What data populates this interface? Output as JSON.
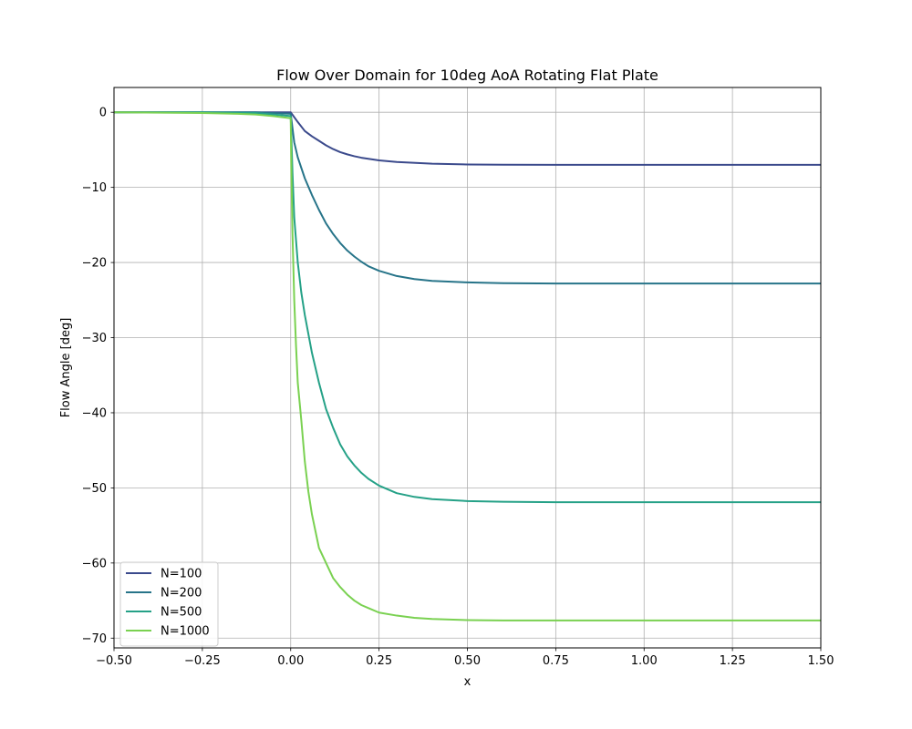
{
  "chart_data": {
    "type": "line",
    "title": "Flow Over Domain for 10deg AoA Rotating Flat Plate",
    "xlabel": "x",
    "ylabel": "Flow Angle [deg]",
    "xlim": [
      -0.5,
      1.5
    ],
    "ylim": [
      -71.3,
      3.3
    ],
    "xticks": [
      -0.5,
      -0.25,
      0.0,
      0.25,
      0.5,
      0.75,
      1.0,
      1.25,
      1.5
    ],
    "xtick_labels": [
      "−0.50",
      "−0.25",
      "0.00",
      "0.25",
      "0.50",
      "0.75",
      "1.00",
      "1.25",
      "1.50"
    ],
    "yticks": [
      0,
      -10,
      -20,
      -30,
      -40,
      -50,
      -60,
      -70
    ],
    "ytick_labels": [
      "0",
      "−10",
      "−20",
      "−30",
      "−40",
      "−50",
      "−60",
      "−70"
    ],
    "grid": true,
    "legend_position": "lower-left",
    "series": [
      {
        "name": "N=100",
        "color": "#3b4a8c",
        "x": [
          -0.5,
          -0.25,
          -0.1,
          -0.05,
          0.0,
          0.02,
          0.04,
          0.06,
          0.08,
          0.1,
          0.12,
          0.14,
          0.16,
          0.18,
          0.2,
          0.25,
          0.3,
          0.4,
          0.5,
          0.6,
          0.75,
          1.0,
          1.25,
          1.5
        ],
        "y": [
          0.0,
          0.0,
          0.0,
          0.0,
          0.0,
          -1.3,
          -2.5,
          -3.2,
          -3.8,
          -4.4,
          -4.9,
          -5.3,
          -5.6,
          -5.85,
          -6.05,
          -6.4,
          -6.62,
          -6.85,
          -6.95,
          -6.98,
          -7.0,
          -7.0,
          -7.0,
          -7.0
        ]
      },
      {
        "name": "N=200",
        "color": "#277489",
        "x": [
          -0.5,
          -0.25,
          -0.1,
          -0.05,
          0.0,
          0.01,
          0.02,
          0.04,
          0.06,
          0.08,
          0.1,
          0.12,
          0.14,
          0.16,
          0.18,
          0.2,
          0.22,
          0.25,
          0.3,
          0.35,
          0.4,
          0.5,
          0.6,
          0.75,
          1.0,
          1.25,
          1.5
        ],
        "y": [
          0.0,
          0.0,
          0.0,
          -0.1,
          -0.2,
          -4.0,
          -6.0,
          -8.8,
          -11.0,
          -13.0,
          -14.8,
          -16.2,
          -17.4,
          -18.4,
          -19.2,
          -19.9,
          -20.5,
          -21.1,
          -21.8,
          -22.2,
          -22.45,
          -22.65,
          -22.75,
          -22.8,
          -22.8,
          -22.8,
          -22.8
        ]
      },
      {
        "name": "N=500",
        "color": "#25a187",
        "x": [
          -0.5,
          -0.25,
          -0.1,
          -0.05,
          0.0,
          0.005,
          0.01,
          0.02,
          0.03,
          0.04,
          0.06,
          0.08,
          0.1,
          0.12,
          0.14,
          0.16,
          0.18,
          0.2,
          0.22,
          0.25,
          0.3,
          0.35,
          0.4,
          0.5,
          0.6,
          0.75,
          1.0,
          1.25,
          1.5
        ],
        "y": [
          0.0,
          0.0,
          -0.1,
          -0.3,
          -0.5,
          -8.0,
          -14.0,
          -20.0,
          -24.0,
          -27.0,
          -32.0,
          -36.0,
          -39.5,
          -42.0,
          -44.2,
          -45.8,
          -47.0,
          -48.0,
          -48.8,
          -49.7,
          -50.7,
          -51.2,
          -51.5,
          -51.75,
          -51.85,
          -51.9,
          -51.9,
          -51.9,
          -51.9
        ]
      },
      {
        "name": "N=1000",
        "color": "#7ad151",
        "x": [
          -0.5,
          -0.25,
          -0.15,
          -0.1,
          -0.05,
          0.0,
          0.002,
          0.005,
          0.01,
          0.015,
          0.02,
          0.03,
          0.04,
          0.05,
          0.06,
          0.08,
          0.1,
          0.12,
          0.14,
          0.16,
          0.18,
          0.2,
          0.22,
          0.25,
          0.3,
          0.35,
          0.4,
          0.5,
          0.6,
          0.75,
          1.0,
          1.25,
          1.5
        ],
        "y": [
          0.0,
          -0.1,
          -0.2,
          -0.3,
          -0.5,
          -0.8,
          -8.0,
          -16.0,
          -25.0,
          -31.0,
          -36.0,
          -41.0,
          -46.5,
          -50.5,
          -53.5,
          -58.0,
          -60.0,
          -62.0,
          -63.2,
          -64.2,
          -65.0,
          -65.6,
          -66.0,
          -66.6,
          -67.0,
          -67.3,
          -67.45,
          -67.6,
          -67.65,
          -67.65,
          -67.65,
          -67.65,
          -67.65
        ]
      }
    ]
  }
}
